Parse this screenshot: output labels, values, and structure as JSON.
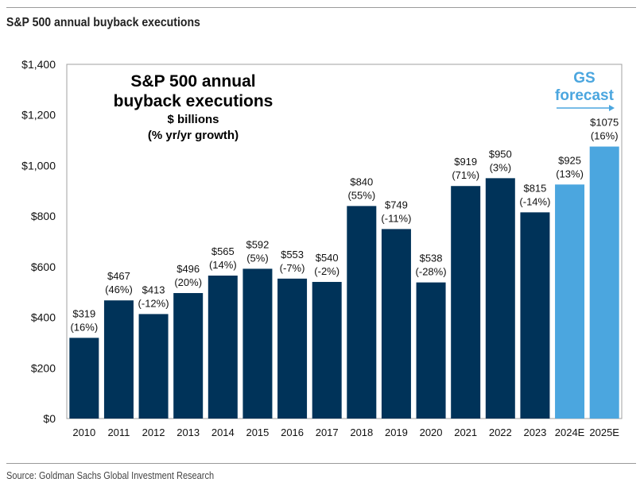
{
  "header": {
    "title": "S&P 500 annual buyback executions"
  },
  "footer": {
    "source": "Source: Goldman Sachs Global Investment Research"
  },
  "chart_data": {
    "type": "bar",
    "inner_title": [
      "S&P 500 annual",
      "buyback executions"
    ],
    "inner_subtitle": [
      "$ billions",
      "(% yr/yr growth)"
    ],
    "annotation": [
      "GS",
      "forecast"
    ],
    "categories": [
      "2010",
      "2011",
      "2012",
      "2013",
      "2014",
      "2015",
      "2016",
      "2017",
      "2018",
      "2019",
      "2020",
      "2021",
      "2022",
      "2023",
      "2024E",
      "2025E"
    ],
    "values": [
      319,
      467,
      413,
      496,
      565,
      592,
      553,
      540,
      840,
      749,
      538,
      919,
      950,
      815,
      925,
      1075
    ],
    "value_labels": [
      "$319",
      "$467",
      "$413",
      "$496",
      "$565",
      "$592",
      "$553",
      "$540",
      "$840",
      "$749",
      "$538",
      "$919",
      "$950",
      "$815",
      "$925",
      "$1075"
    ],
    "growth_labels": [
      "(16%)",
      "(46%)",
      "(-12%)",
      "(20%)",
      "(14%)",
      "(5%)",
      "(-7%)",
      "(-2%)",
      "(55%)",
      "(-11%)",
      "(-28%)",
      "(71%)",
      "(3%)",
      "(-14%)",
      "(13%)",
      "(16%)"
    ],
    "forecast": [
      false,
      false,
      false,
      false,
      false,
      false,
      false,
      false,
      false,
      false,
      false,
      false,
      false,
      false,
      true,
      true
    ],
    "yticks": [
      "$0",
      "$200",
      "$400",
      "$600",
      "$800",
      "$1,000",
      "$1,200",
      "$1,400"
    ],
    "ylim": [
      0,
      1400
    ],
    "grid": false,
    "colors": {
      "actual": "#003359",
      "forecast": "#4ba6df",
      "annotation": "#4ba6df"
    }
  }
}
